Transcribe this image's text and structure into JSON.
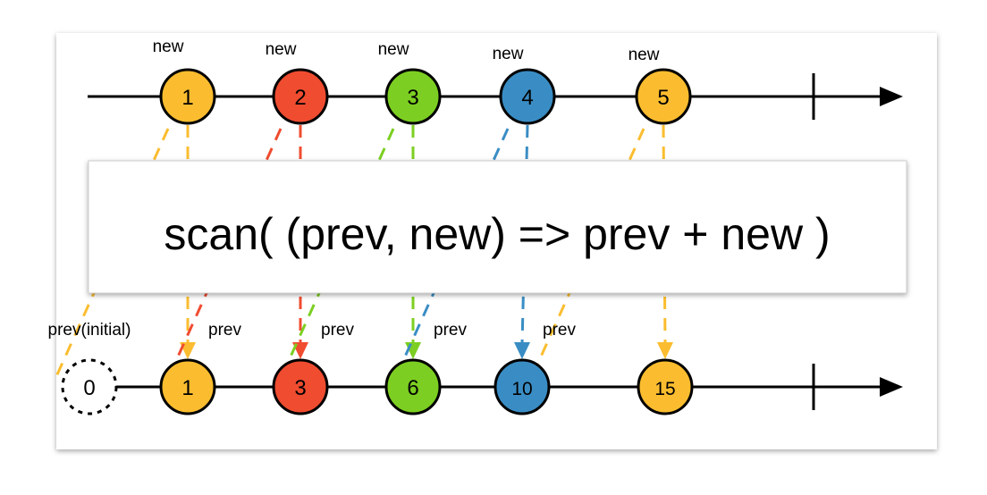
{
  "colors": {
    "yellow": "#fbbd2f",
    "red": "#f04c30",
    "green": "#7ccf22",
    "blue": "#3a8dc4",
    "line": "#000000"
  },
  "input_stream": {
    "marbles": [
      {
        "value": "1",
        "label": "new",
        "color": "yellow"
      },
      {
        "value": "2",
        "label": "new",
        "color": "red"
      },
      {
        "value": "3",
        "label": "new",
        "color": "green"
      },
      {
        "value": "4",
        "label": "new",
        "color": "blue"
      },
      {
        "value": "5",
        "label": "new",
        "color": "yellow"
      }
    ],
    "completed": true
  },
  "operator": {
    "text": "scan( (prev, new) => prev + new )"
  },
  "output_stream": {
    "initial": {
      "value": "0",
      "label": "prev(initial)"
    },
    "marbles": [
      {
        "value": "1",
        "color": "yellow",
        "prev_label": "prev"
      },
      {
        "value": "3",
        "color": "red",
        "prev_label": "prev"
      },
      {
        "value": "6",
        "color": "green",
        "prev_label": "prev"
      },
      {
        "value": "10",
        "color": "blue",
        "prev_label": "prev"
      },
      {
        "value": "15",
        "color": "yellow",
        "prev_label": ""
      }
    ],
    "completed": true
  }
}
